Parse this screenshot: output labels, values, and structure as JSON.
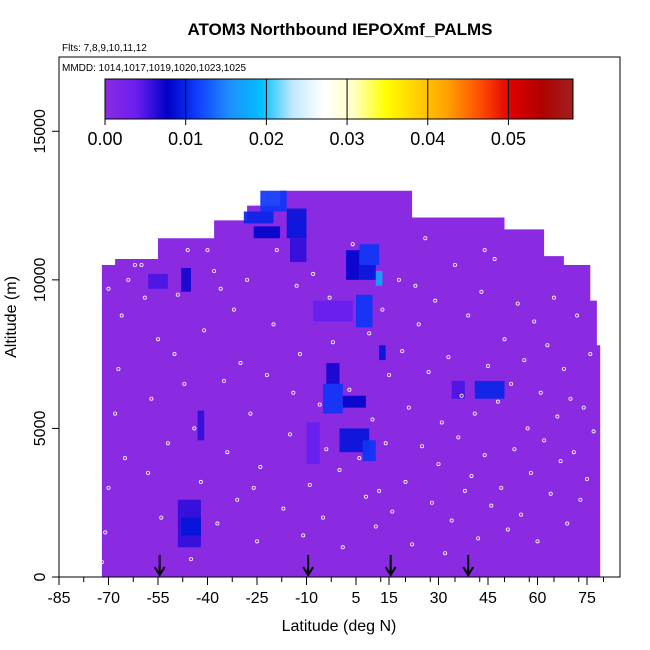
{
  "chart_data": {
    "type": "heatmap",
    "title": "ATOM3 Northbound IEPOXmf_PALMS",
    "subtitle_flights": "Flts: 7,8,9,10,11,12",
    "subtitle_dates": "MMDD: 1014,1017,1019,1020,1023,1025",
    "xlabel": "Latitude (deg N)",
    "ylabel": "Altitude (m)",
    "xlim": [
      -85,
      85
    ],
    "ylim": [
      0,
      17500
    ],
    "x_ticks": [
      -85,
      -70,
      -55,
      -40,
      -25,
      -10,
      5,
      15,
      30,
      45,
      60,
      75
    ],
    "x_tick_labels": [
      "-85",
      "-70",
      "-55",
      "-40",
      "-25",
      "-10",
      "5",
      "15",
      "30",
      "45",
      "60",
      "75"
    ],
    "y_ticks": [
      0,
      5000,
      10000,
      15000
    ],
    "y_tick_labels": [
      "0",
      "5000",
      "10000",
      "15000"
    ],
    "colorbar": {
      "range": [
        0,
        0.058
      ],
      "ticks": [
        0.0,
        0.01,
        0.02,
        0.03,
        0.04,
        0.05
      ],
      "tick_labels": [
        "0.00",
        "0.01",
        "0.02",
        "0.03",
        "0.04",
        "0.05"
      ],
      "colors": [
        "#8a2be2",
        "#6a1ff0",
        "#0000c8",
        "#1040ff",
        "#1e90ff",
        "#00bfff",
        "#bfe8ff",
        "#ffffff",
        "#ffffc0",
        "#ffff00",
        "#ffd000",
        "#ffa000",
        "#ff5000",
        "#e00000",
        "#b00000",
        "#a02020"
      ]
    },
    "background_value": 0.0,
    "coverage": [
      {
        "x": -72,
        "ymax": 10500
      },
      {
        "x": -68,
        "ymax": 10700
      },
      {
        "x": -60,
        "ymax": 10700
      },
      {
        "x": -55,
        "ymax": 11400
      },
      {
        "x": -42,
        "ymax": 11400
      },
      {
        "x": -38,
        "ymax": 12000
      },
      {
        "x": -28,
        "ymax": 12500
      },
      {
        "x": -20,
        "ymax": 12500
      },
      {
        "x": -18,
        "ymax": 13000
      },
      {
        "x": 20,
        "ymax": 13000
      },
      {
        "x": 22,
        "ymax": 12100
      },
      {
        "x": 40,
        "ymax": 12100
      },
      {
        "x": 50,
        "ymax": 11700
      },
      {
        "x": 62,
        "ymax": 10800
      },
      {
        "x": 68,
        "ymax": 10500
      },
      {
        "x": 76,
        "ymax": 9300
      },
      {
        "x": 78,
        "ymax": 7800
      }
    ],
    "cells": [
      {
        "x0": -24,
        "x1": -16,
        "y0": 12300,
        "y1": 13000,
        "v": 0.011
      },
      {
        "x0": -29,
        "x1": -20,
        "y0": 11900,
        "y1": 12300,
        "v": 0.01
      },
      {
        "x0": -16,
        "x1": -10,
        "y0": 11400,
        "y1": 12400,
        "v": 0.009
      },
      {
        "x0": -26,
        "x1": -18,
        "y0": 11400,
        "y1": 11800,
        "v": 0.008
      },
      {
        "x0": -15,
        "x1": -10,
        "y0": 10600,
        "y1": 11400,
        "v": 0.006
      },
      {
        "x0": 6,
        "x1": 12,
        "y0": 10500,
        "y1": 11200,
        "v": 0.011
      },
      {
        "x0": 2,
        "x1": 6,
        "y0": 10000,
        "y1": 11000,
        "v": 0.008
      },
      {
        "x0": 6,
        "x1": 11,
        "y0": 10000,
        "y1": 10500,
        "v": 0.009
      },
      {
        "x0": 11,
        "x1": 13,
        "y0": 9800,
        "y1": 10300,
        "v": 0.017
      },
      {
        "x0": 5,
        "x1": 10,
        "y0": 8400,
        "y1": 9500,
        "v": 0.011
      },
      {
        "x0": -8,
        "x1": 4,
        "y0": 8600,
        "y1": 9300,
        "v": 0.004
      },
      {
        "x0": -5,
        "x1": 1,
        "y0": 5500,
        "y1": 6500,
        "v": 0.011
      },
      {
        "x0": -4,
        "x1": 0,
        "y0": 6500,
        "y1": 7200,
        "v": 0.007
      },
      {
        "x0": 1,
        "x1": 8,
        "y0": 5700,
        "y1": 6100,
        "v": 0.008
      },
      {
        "x0": 0,
        "x1": 9,
        "y0": 4200,
        "y1": 5000,
        "v": 0.009
      },
      {
        "x0": 7,
        "x1": 11,
        "y0": 3900,
        "y1": 4600,
        "v": 0.011
      },
      {
        "x0": 41,
        "x1": 50,
        "y0": 6000,
        "y1": 6600,
        "v": 0.01
      },
      {
        "x0": 34,
        "x1": 38,
        "y0": 6000,
        "y1": 6600,
        "v": 0.005
      },
      {
        "x0": -48,
        "x1": -45,
        "y0": 9600,
        "y1": 10400,
        "v": 0.007
      },
      {
        "x0": -58,
        "x1": -52,
        "y0": 9700,
        "y1": 10200,
        "v": 0.005
      },
      {
        "x0": -43,
        "x1": -41,
        "y0": 4600,
        "y1": 5600,
        "v": 0.006
      },
      {
        "x0": -49,
        "x1": -42,
        "y0": 1000,
        "y1": 2600,
        "v": 0.006
      },
      {
        "x0": -48,
        "x1": -42,
        "y0": 1400,
        "y1": 2000,
        "v": 0.009
      },
      {
        "x0": 12,
        "x1": 14,
        "y0": 7300,
        "y1": 7800,
        "v": 0.009
      },
      {
        "x0": -10,
        "x1": -6,
        "y0": 3800,
        "y1": 5200,
        "v": 0.004
      }
    ],
    "sample_points": [
      [
        -72,
        500
      ],
      [
        -71,
        1500
      ],
      [
        -70,
        3000
      ],
      [
        -68,
        5500
      ],
      [
        -67,
        7000
      ],
      [
        -66,
        8800
      ],
      [
        -64,
        10000
      ],
      [
        -62,
        10500
      ],
      [
        -60,
        10500
      ],
      [
        -59,
        9400
      ],
      [
        -58,
        3500
      ],
      [
        -57,
        6000
      ],
      [
        -55,
        8000
      ],
      [
        -54,
        2000
      ],
      [
        -52,
        4500
      ],
      [
        -50,
        7500
      ],
      [
        -49,
        9500
      ],
      [
        -46,
        11000
      ],
      [
        -45,
        600
      ],
      [
        -44,
        5000
      ],
      [
        -42,
        3200
      ],
      [
        -41,
        8300
      ],
      [
        -40,
        11000
      ],
      [
        -38,
        10300
      ],
      [
        -37,
        1800
      ],
      [
        -35,
        6600
      ],
      [
        -34,
        4200
      ],
      [
        -32,
        9000
      ],
      [
        -31,
        2600
      ],
      [
        -30,
        7200
      ],
      [
        -28,
        10000
      ],
      [
        -27,
        5500
      ],
      [
        -25,
        1200
      ],
      [
        -24,
        3700
      ],
      [
        -22,
        6800
      ],
      [
        -20,
        8500
      ],
      [
        -19,
        11000
      ],
      [
        -17,
        2300
      ],
      [
        -15,
        4800
      ],
      [
        -13,
        9800
      ],
      [
        -12,
        7500
      ],
      [
        -11,
        1400
      ],
      [
        -9,
        3100
      ],
      [
        -8,
        10200
      ],
      [
        -6,
        5800
      ],
      [
        -5,
        2000
      ],
      [
        -3,
        9400
      ],
      [
        -2,
        7900
      ],
      [
        0,
        3600
      ],
      [
        1,
        1000
      ],
      [
        3,
        6300
      ],
      [
        4,
        11200
      ],
      [
        6,
        4000
      ],
      [
        8,
        2700
      ],
      [
        9,
        8200
      ],
      [
        10,
        5300
      ],
      [
        11,
        1700
      ],
      [
        13,
        9000
      ],
      [
        14,
        4500
      ],
      [
        15,
        6800
      ],
      [
        16,
        2200
      ],
      [
        18,
        10000
      ],
      [
        19,
        7600
      ],
      [
        20,
        3200
      ],
      [
        21,
        5700
      ],
      [
        22,
        1100
      ],
      [
        24,
        8500
      ],
      [
        25,
        4400
      ],
      [
        26,
        11400
      ],
      [
        27,
        6900
      ],
      [
        28,
        2500
      ],
      [
        29,
        9300
      ],
      [
        30,
        3800
      ],
      [
        31,
        5200
      ],
      [
        32,
        800
      ],
      [
        33,
        7400
      ],
      [
        34,
        1900
      ],
      [
        35,
        10500
      ],
      [
        36,
        4700
      ],
      [
        37,
        6100
      ],
      [
        38,
        2900
      ],
      [
        39,
        8800
      ],
      [
        40,
        3400
      ],
      [
        41,
        5500
      ],
      [
        42,
        1300
      ],
      [
        43,
        9600
      ],
      [
        44,
        4100
      ],
      [
        45,
        7100
      ],
      [
        46,
        2400
      ],
      [
        47,
        10700
      ],
      [
        48,
        5900
      ],
      [
        49,
        3000
      ],
      [
        50,
        8000
      ],
      [
        51,
        1600
      ],
      [
        52,
        6500
      ],
      [
        53,
        4300
      ],
      [
        54,
        9200
      ],
      [
        55,
        2100
      ],
      [
        56,
        7300
      ],
      [
        57,
        5000
      ],
      [
        58,
        3500
      ],
      [
        59,
        8600
      ],
      [
        60,
        1200
      ],
      [
        61,
        6200
      ],
      [
        62,
        4600
      ],
      [
        63,
        7800
      ],
      [
        64,
        2800
      ],
      [
        65,
        9400
      ],
      [
        66,
        5400
      ],
      [
        67,
        3900
      ],
      [
        68,
        7000
      ],
      [
        69,
        1800
      ],
      [
        70,
        6000
      ],
      [
        71,
        4200
      ],
      [
        72,
        8800
      ],
      [
        73,
        2600
      ],
      [
        74,
        5700
      ],
      [
        75,
        3300
      ],
      [
        76,
        7500
      ],
      [
        77,
        4900
      ],
      [
        -70,
        9700
      ],
      [
        -65,
        4000
      ],
      [
        -47,
        6500
      ],
      [
        -36,
        9700
      ],
      [
        -26,
        3000
      ],
      [
        -14,
        6200
      ],
      [
        -4,
        4300
      ],
      [
        12,
        2900
      ],
      [
        23,
        9800
      ],
      [
        44,
        11000
      ]
    ],
    "arrows_x": [
      -54.5,
      -9.5,
      15.5,
      39
    ]
  }
}
